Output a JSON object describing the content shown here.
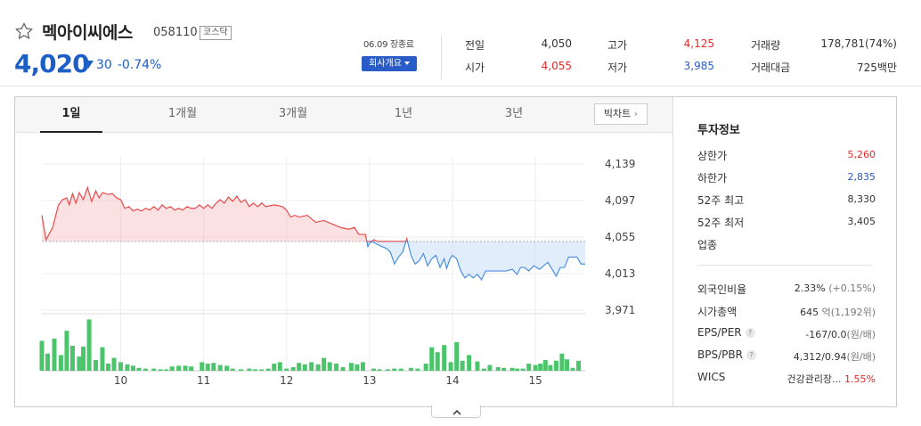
{
  "stock": {
    "name": "멕아이씨에스",
    "code": "058110",
    "market": "코스닥",
    "price": "4,020",
    "change": "30",
    "change_pct": "-0.74%",
    "date_label": "06.09 장종료",
    "overview_label": "회사개요"
  },
  "quote": {
    "prev_label": "전일",
    "prev": "4,050",
    "open_label": "시가",
    "open": "4,055",
    "high_label": "고가",
    "high": "4,125",
    "low_label": "저가",
    "low": "3,985",
    "volume_label": "거래량",
    "volume": "178,781(74%)",
    "amount_label": "거래대금",
    "amount": "725백만"
  },
  "tabs": [
    "1일",
    "1개월",
    "3개월",
    "1년",
    "3년"
  ],
  "active_tab": 0,
  "bigchart_label": "빅차트",
  "colors": {
    "up": "#e22a2a",
    "down": "#2a5cc8",
    "volume": "#4cc46c"
  },
  "chart_data": {
    "type": "area",
    "baseline": 4050,
    "ylim": [
      3971,
      4139
    ],
    "yticks": [
      "4,139",
      "4,097",
      "4,055",
      "4,013",
      "3,971"
    ],
    "ytick_values": [
      4139,
      4097,
      4055,
      4013,
      3971
    ],
    "xticks": [
      "10",
      "11",
      "12",
      "13",
      "14",
      "15"
    ],
    "xtick_values": [
      10,
      11,
      12,
      13,
      14,
      15
    ],
    "x_range": [
      9.05,
      15.6
    ],
    "price_series": [
      [
        9.05,
        4080
      ],
      [
        9.1,
        4052
      ],
      [
        9.18,
        4066
      ],
      [
        9.25,
        4092
      ],
      [
        9.3,
        4098
      ],
      [
        9.35,
        4100
      ],
      [
        9.38,
        4092
      ],
      [
        9.42,
        4105
      ],
      [
        9.46,
        4094
      ],
      [
        9.5,
        4106
      ],
      [
        9.55,
        4098
      ],
      [
        9.6,
        4112
      ],
      [
        9.65,
        4096
      ],
      [
        9.7,
        4108
      ],
      [
        9.74,
        4100
      ],
      [
        9.78,
        4106
      ],
      [
        9.85,
        4104
      ],
      [
        9.9,
        4105
      ],
      [
        9.95,
        4100
      ],
      [
        10.0,
        4098
      ],
      [
        10.05,
        4088
      ],
      [
        10.1,
        4090
      ],
      [
        10.15,
        4085
      ],
      [
        10.2,
        4087
      ],
      [
        10.25,
        4085
      ],
      [
        10.3,
        4088
      ],
      [
        10.35,
        4086
      ],
      [
        10.4,
        4090
      ],
      [
        10.45,
        4086
      ],
      [
        10.5,
        4092
      ],
      [
        10.55,
        4088
      ],
      [
        10.6,
        4090
      ],
      [
        10.65,
        4086
      ],
      [
        10.7,
        4088
      ],
      [
        10.75,
        4086
      ],
      [
        10.8,
        4090
      ],
      [
        10.85,
        4088
      ],
      [
        10.9,
        4088
      ],
      [
        10.95,
        4092
      ],
      [
        11.0,
        4088
      ],
      [
        11.05,
        4092
      ],
      [
        11.1,
        4088
      ],
      [
        11.15,
        4094
      ],
      [
        11.2,
        4098
      ],
      [
        11.25,
        4094
      ],
      [
        11.3,
        4101
      ],
      [
        11.35,
        4096
      ],
      [
        11.4,
        4102
      ],
      [
        11.45,
        4095
      ],
      [
        11.5,
        4098
      ],
      [
        11.55,
        4090
      ],
      [
        11.6,
        4094
      ],
      [
        11.65,
        4090
      ],
      [
        11.7,
        4094
      ],
      [
        11.75,
        4090
      ],
      [
        11.85,
        4092
      ],
      [
        11.95,
        4090
      ],
      [
        12.0,
        4086
      ],
      [
        12.05,
        4078
      ],
      [
        12.1,
        4080
      ],
      [
        12.15,
        4078
      ],
      [
        12.25,
        4080
      ],
      [
        12.35,
        4072
      ],
      [
        12.45,
        4074
      ],
      [
        12.55,
        4070
      ],
      [
        12.65,
        4066
      ],
      [
        12.75,
        4064
      ],
      [
        12.82,
        4066
      ],
      [
        12.87,
        4058
      ],
      [
        12.95,
        4058
      ],
      [
        12.98,
        4044
      ],
      [
        13.0,
        4048
      ],
      [
        13.05,
        4052
      ],
      [
        13.1,
        4050
      ],
      [
        13.15,
        4044
      ],
      [
        13.2,
        4042
      ],
      [
        13.25,
        4038
      ],
      [
        13.3,
        4024
      ],
      [
        13.35,
        4032
      ],
      [
        13.4,
        4038
      ],
      [
        13.45,
        4053
      ],
      [
        13.5,
        4034
      ],
      [
        13.55,
        4024
      ],
      [
        13.6,
        4028
      ],
      [
        13.65,
        4036
      ],
      [
        13.7,
        4022
      ],
      [
        13.75,
        4030
      ],
      [
        13.8,
        4034
      ],
      [
        13.85,
        4020
      ],
      [
        13.9,
        4030
      ],
      [
        13.93,
        4019
      ],
      [
        13.97,
        4030
      ],
      [
        14.0,
        4034
      ],
      [
        14.05,
        4030
      ],
      [
        14.1,
        4016
      ],
      [
        14.15,
        4008
      ],
      [
        14.2,
        4012
      ],
      [
        14.25,
        4008
      ],
      [
        14.3,
        4012
      ],
      [
        14.35,
        4006
      ],
      [
        14.4,
        4016
      ],
      [
        14.45,
        4016
      ],
      [
        14.55,
        4016
      ],
      [
        14.65,
        4016
      ],
      [
        14.72,
        4018
      ],
      [
        14.78,
        4012
      ],
      [
        14.82,
        4020
      ],
      [
        14.87,
        4020
      ],
      [
        14.92,
        4016
      ],
      [
        14.98,
        4022
      ],
      [
        15.05,
        4018
      ],
      [
        15.1,
        4022
      ],
      [
        15.15,
        4026
      ],
      [
        15.2,
        4018
      ],
      [
        15.25,
        4010
      ],
      [
        15.3,
        4020
      ],
      [
        15.35,
        4020
      ],
      [
        15.4,
        4032
      ],
      [
        15.5,
        4032
      ],
      [
        15.55,
        4024
      ],
      [
        15.6,
        4024
      ]
    ],
    "volume_series": [
      [
        9.05,
        42
      ],
      [
        9.12,
        24
      ],
      [
        9.2,
        45
      ],
      [
        9.28,
        22
      ],
      [
        9.35,
        56
      ],
      [
        9.42,
        35
      ],
      [
        9.5,
        20
      ],
      [
        9.55,
        34
      ],
      [
        9.62,
        72
      ],
      [
        9.7,
        15
      ],
      [
        9.78,
        33
      ],
      [
        9.85,
        10
      ],
      [
        9.92,
        18
      ],
      [
        10.0,
        12
      ],
      [
        10.08,
        9
      ],
      [
        10.15,
        7
      ],
      [
        10.22,
        4
      ],
      [
        10.3,
        3
      ],
      [
        10.4,
        3
      ],
      [
        10.48,
        2
      ],
      [
        10.55,
        2
      ],
      [
        10.62,
        6
      ],
      [
        10.7,
        7
      ],
      [
        10.78,
        7
      ],
      [
        10.85,
        6
      ],
      [
        10.98,
        12
      ],
      [
        11.05,
        10
      ],
      [
        11.12,
        11
      ],
      [
        11.2,
        8
      ],
      [
        11.28,
        7
      ],
      [
        11.35,
        3
      ],
      [
        11.45,
        2
      ],
      [
        11.55,
        3
      ],
      [
        11.62,
        2
      ],
      [
        11.7,
        2
      ],
      [
        11.78,
        3
      ],
      [
        11.85,
        10
      ],
      [
        11.92,
        12
      ],
      [
        12.0,
        3
      ],
      [
        12.08,
        5
      ],
      [
        12.15,
        11
      ],
      [
        12.22,
        9
      ],
      [
        12.3,
        12
      ],
      [
        12.38,
        9
      ],
      [
        12.45,
        18
      ],
      [
        12.52,
        12
      ],
      [
        12.6,
        10
      ],
      [
        12.68,
        5
      ],
      [
        12.78,
        11
      ],
      [
        12.85,
        9
      ],
      [
        12.92,
        12
      ],
      [
        13.05,
        3
      ],
      [
        13.12,
        2
      ],
      [
        13.22,
        2
      ],
      [
        13.3,
        3
      ],
      [
        13.38,
        3
      ],
      [
        13.5,
        4
      ],
      [
        13.58,
        3
      ],
      [
        13.68,
        10
      ],
      [
        13.75,
        33
      ],
      [
        13.82,
        26
      ],
      [
        13.9,
        36
      ],
      [
        13.98,
        12
      ],
      [
        14.05,
        40
      ],
      [
        14.12,
        14
      ],
      [
        14.2,
        22
      ],
      [
        14.3,
        13
      ],
      [
        14.38,
        3
      ],
      [
        14.45,
        8
      ],
      [
        14.55,
        5
      ],
      [
        14.62,
        4
      ],
      [
        14.72,
        4
      ],
      [
        14.78,
        3
      ],
      [
        14.85,
        3
      ],
      [
        14.92,
        10
      ],
      [
        15.0,
        8
      ],
      [
        15.06,
        10
      ],
      [
        15.12,
        15
      ],
      [
        15.18,
        8
      ],
      [
        15.25,
        14
      ],
      [
        15.32,
        24
      ],
      [
        15.38,
        16
      ],
      [
        15.45,
        4
      ],
      [
        15.52,
        14
      ]
    ],
    "volume_max": 75
  },
  "invest": {
    "title": "투자정보",
    "upper_label": "상한가",
    "upper": "5,260",
    "lower_label": "하한가",
    "lower": "2,835",
    "w52_high_label": "52주 최고",
    "w52_high": "8,330",
    "w52_low_label": "52주 최저",
    "w52_low": "3,405",
    "sector_label": "업종",
    "foreign_label": "외국인비율",
    "foreign": "2.33%",
    "foreign_change": "(+0.15%)",
    "mcap_label": "시가총액",
    "mcap": "645",
    "mcap_unit": "억",
    "mcap_extra": "(1,192위)",
    "eps_label": "EPS/PER",
    "eps": "-167/0.0",
    "eps_unit": "(원/배)",
    "bps_label": "BPS/PBR",
    "bps": "4,312/0.94",
    "bps_unit": "(원/배)",
    "wics_label": "WICS",
    "wics": "건강관리장...",
    "wics_pct": "1.55%",
    "help_glyph": "?"
  }
}
